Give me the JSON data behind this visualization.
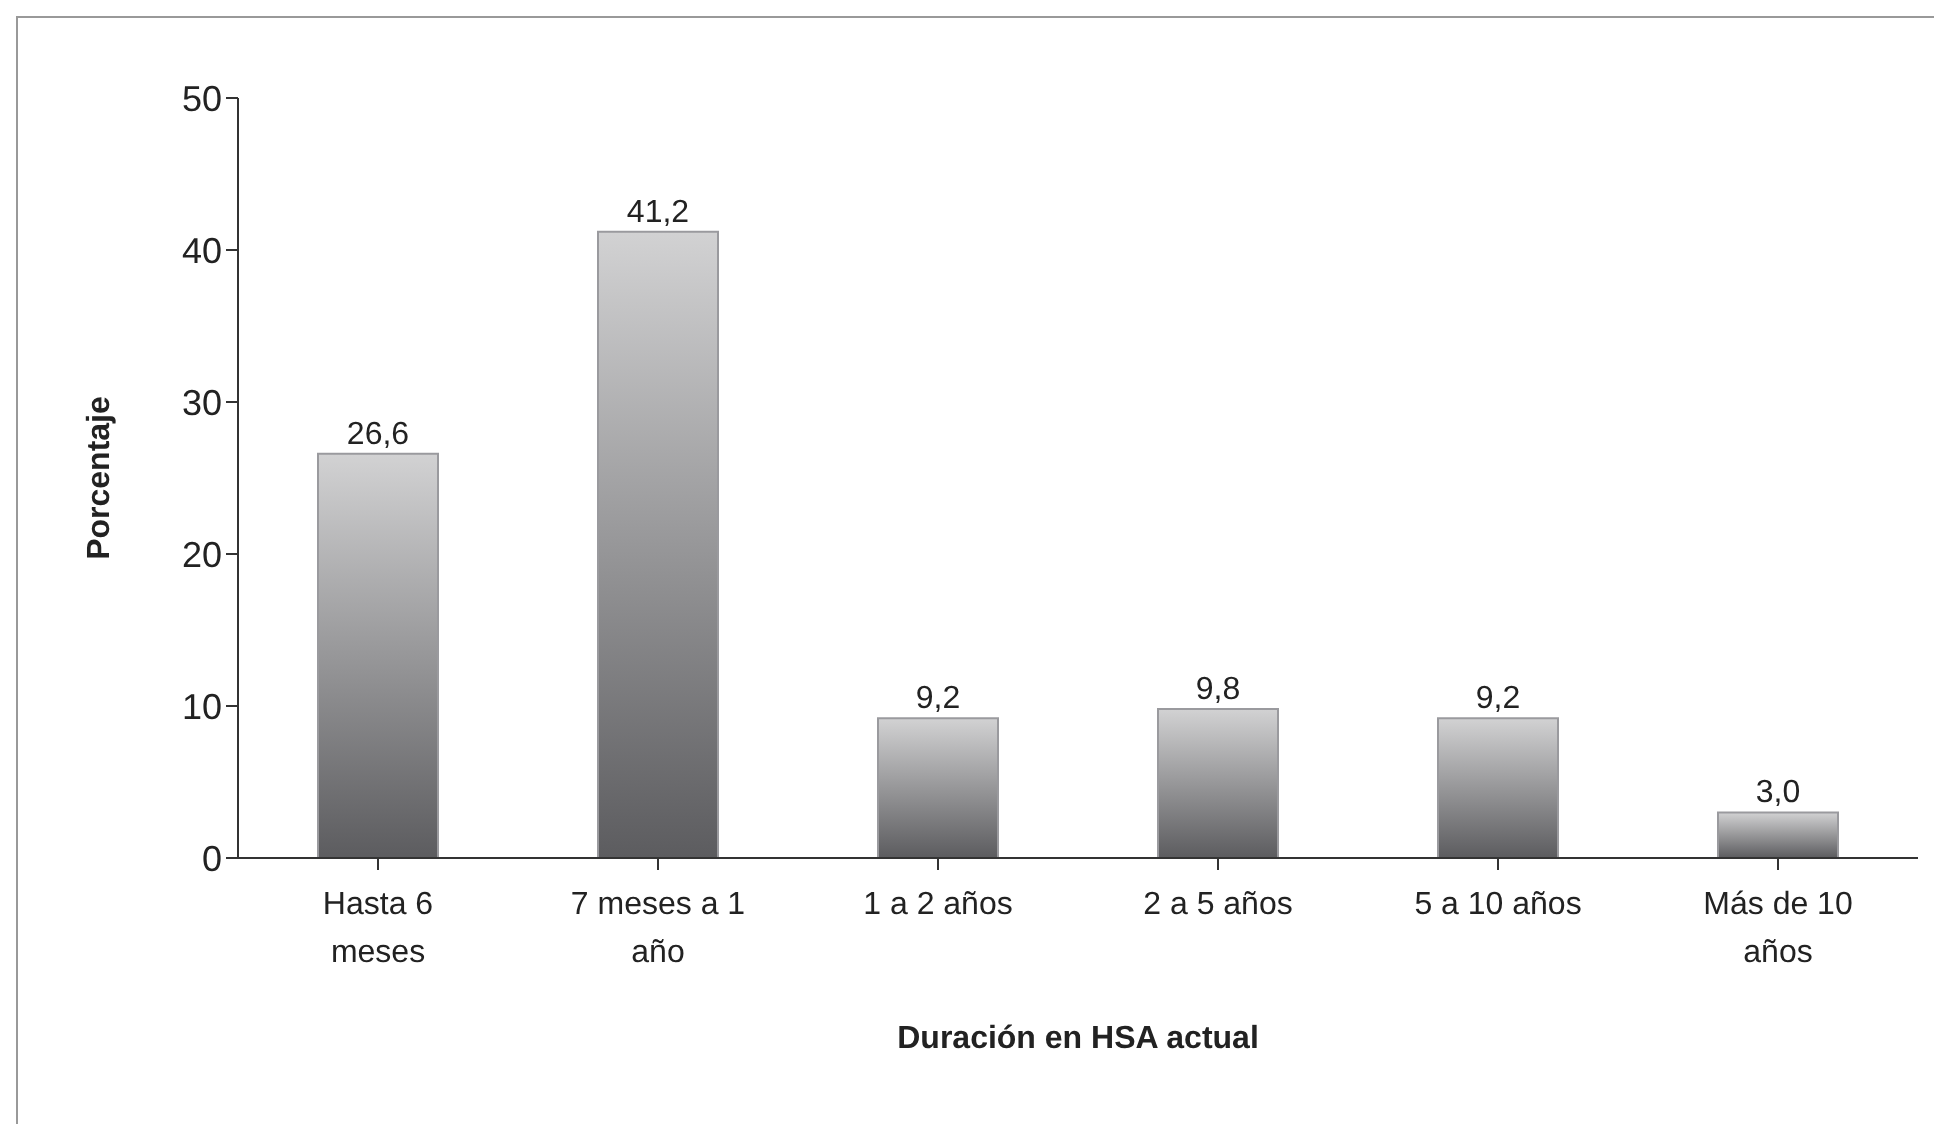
{
  "chart_data": {
    "type": "bar",
    "xlabel": "Duración en HSA actual",
    "ylabel": "Porcentaje",
    "categories": [
      "Hasta 6 meses",
      "7 meses a 1 año",
      "1 a 2 años",
      "2 a 5 años",
      "5 a 10 años",
      "Más de 10 años"
    ],
    "values": [
      26.6,
      41.2,
      9.2,
      9.8,
      9.2,
      3.0
    ],
    "value_labels": [
      "26,6",
      "41,2",
      "9,2",
      "9,8",
      "9,2",
      "3,0"
    ],
    "color": "#9a9a9e",
    "ylim": [
      0,
      50
    ],
    "yticks": [
      0,
      10,
      20,
      30,
      40,
      50
    ],
    "grid": false
  }
}
